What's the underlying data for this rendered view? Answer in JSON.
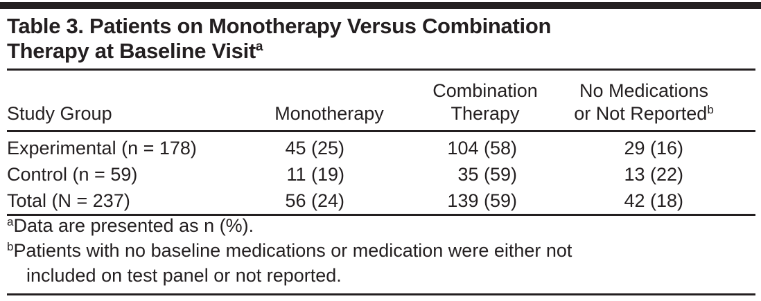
{
  "ink_color": "#231f20",
  "table": {
    "title_text": "Table 3. Patients on Monotherapy Versus Combination\nTherapy at Baseline Visit",
    "title_sup": "a",
    "columns": [
      {
        "label": "Study Group"
      },
      {
        "label": "Monotherapy"
      },
      {
        "line1": "Combination",
        "line2": "Therapy"
      },
      {
        "line1": "No Medications",
        "line2": "or Not Reported",
        "sup": "b"
      }
    ],
    "rows": [
      {
        "cells": [
          "Experimental (n = 178)",
          "45 (25)",
          "104 (58)",
          "29 (16)"
        ]
      },
      {
        "cells": [
          "Control (n = 59)",
          "11 (19)",
          "35 (59)",
          "13 (22)"
        ]
      },
      {
        "cells": [
          "Total (N = 237)",
          "56 (24)",
          "139 (59)",
          "42 (18)"
        ]
      }
    ],
    "footnotes": [
      {
        "sup": "a",
        "text": "Data are presented as n (%)."
      },
      {
        "sup": "b",
        "text": "Patients with no baseline medications or medication were either not\nincluded on test panel or not reported."
      }
    ]
  }
}
